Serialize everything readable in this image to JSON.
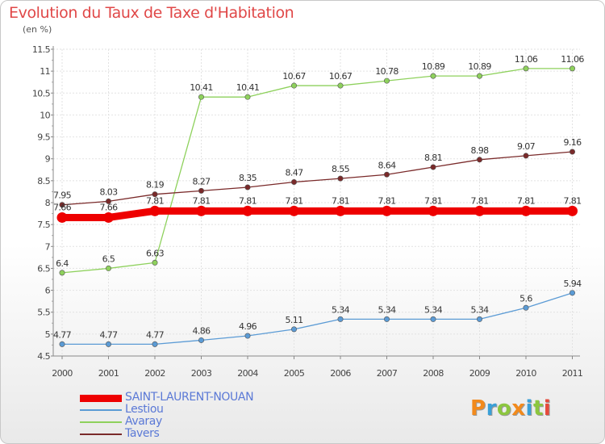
{
  "title": "Evolution du Taux de Taxe d'Habitation",
  "subtitle": "(en %)",
  "logo": {
    "text": "Proxiti",
    "colors": [
      "#f28a1c",
      "#3aa0d8",
      "#8cc63f",
      "#f28a1c",
      "#3aa0d8",
      "#8cc63f",
      "#e64a3c"
    ]
  },
  "chart_data": {
    "type": "line",
    "x": [
      "2000",
      "2001",
      "2002",
      "2003",
      "2004",
      "2005",
      "2006",
      "2007",
      "2008",
      "2009",
      "2010",
      "2011"
    ],
    "ylim": [
      4.5,
      11.5
    ],
    "yticks": [
      "4.5",
      "5",
      "5.5",
      "6",
      "6.5",
      "7",
      "7.5",
      "8",
      "8.5",
      "9",
      "9.5",
      "10",
      "10.5",
      "11",
      "11.5"
    ],
    "grid": true,
    "legend_position": "bottom-left",
    "series": [
      {
        "name": "SAINT-LAURENT-NOUAN",
        "color": "#ee0000",
        "values": [
          7.66,
          7.66,
          7.81,
          7.81,
          7.81,
          7.81,
          7.81,
          7.81,
          7.81,
          7.81,
          7.81,
          7.81
        ],
        "labels": [
          "7.66",
          "7.66",
          "7.81",
          "7.81",
          "7.81",
          "7.81",
          "7.81",
          "7.81",
          "7.81",
          "7.81",
          "7.81",
          "7.81"
        ]
      },
      {
        "name": "Lestiou",
        "color": "#5b9bd5",
        "values": [
          4.77,
          4.77,
          4.77,
          4.86,
          4.96,
          5.11,
          5.34,
          5.34,
          5.34,
          5.34,
          5.6,
          5.94
        ],
        "labels": [
          "4.77",
          "4.77",
          "4.77",
          "4.86",
          "4.96",
          "5.11",
          "5.34",
          "5.34",
          "5.34",
          "5.34",
          "5.6",
          "5.94"
        ]
      },
      {
        "name": "Avaray",
        "color": "#8ed15c",
        "values": [
          6.4,
          6.5,
          6.63,
          10.41,
          10.41,
          10.67,
          10.67,
          10.78,
          10.89,
          10.89,
          11.06,
          11.06
        ],
        "labels": [
          "6.4",
          "6.5",
          "6.63",
          "10.41",
          "10.41",
          "10.67",
          "10.67",
          "10.78",
          "10.89",
          "10.89",
          "11.06",
          "11.06"
        ]
      },
      {
        "name": "Tavers",
        "color": "#7a2a2a",
        "values": [
          7.95,
          8.03,
          8.19,
          8.27,
          8.35,
          8.47,
          8.55,
          8.64,
          8.81,
          8.98,
          9.07,
          9.16
        ],
        "labels": [
          "7.95",
          "8.03",
          "8.19",
          "8.27",
          "8.35",
          "8.47",
          "8.55",
          "8.64",
          "8.81",
          "8.98",
          "9.07",
          "9.16"
        ]
      }
    ]
  }
}
